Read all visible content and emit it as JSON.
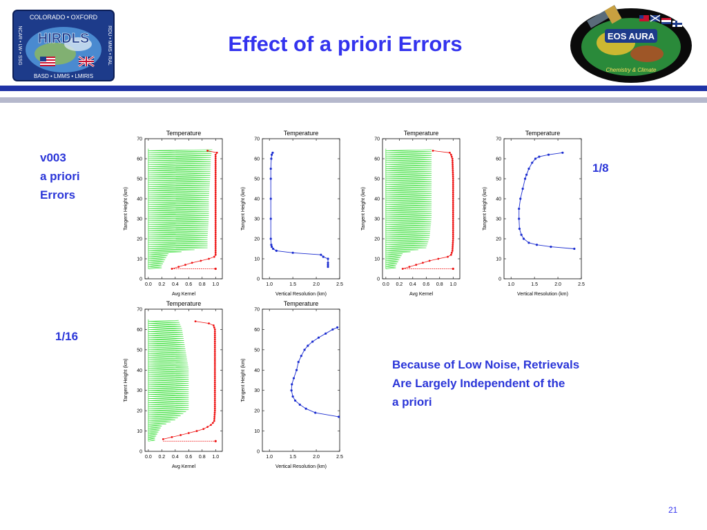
{
  "slide": {
    "title": "Effect of a priori Errors",
    "left_labels": [
      "v003",
      "a priori",
      "Errors"
    ],
    "label_1_8": "1/8",
    "label_1_16": "1/16",
    "note_lines": [
      "Because of Low Noise, Retrievals",
      "Are Largely Independent of the",
      "a priori"
    ],
    "page_number": "21"
  },
  "logo_left": {
    "top_text": "COLORADO • OXFORD",
    "center_text": "HIRDLS",
    "bottom_text": "BASD • LMMS • LMIRIS",
    "left_text": "NCAR • LW • SSG",
    "right_text": "RDU • MMS • RAL"
  },
  "logo_right": {
    "center_text": "EOS AURA",
    "bottom_text": "Chemistry & Climate"
  },
  "colors": {
    "title": "#3333ee",
    "kernel_lines": "#33dd33",
    "kernel_diagonal": "#ee1111",
    "resolution_line": "#1a2cd0",
    "accent_bar": "#1f33a6"
  },
  "chart_data": [
    {
      "type": "line",
      "kind": "kernel",
      "title": "Temperature",
      "xlabel": "Avg Kernel",
      "ylabel": "Tangent Height (km)",
      "xlim": [
        -0.05,
        1.1
      ],
      "ylim": [
        0,
        70
      ],
      "xticks": [
        "0.0",
        "0.2",
        "0.4",
        "0.6",
        "0.8",
        "1.0"
      ],
      "yticks": [
        "0",
        "10",
        "20",
        "30",
        "40",
        "50",
        "60",
        "70"
      ],
      "max_kernel_x": [
        [
          5,
          0.35
        ],
        [
          6,
          0.45
        ],
        [
          7,
          0.55
        ],
        [
          8,
          0.65
        ],
        [
          9,
          0.78
        ],
        [
          10,
          0.9
        ],
        [
          11,
          0.98
        ],
        [
          12,
          1.0
        ],
        [
          14,
          1.0
        ],
        [
          20,
          1.0
        ],
        [
          30,
          1.0
        ],
        [
          40,
          1.0
        ],
        [
          50,
          1.0
        ],
        [
          60,
          1.0
        ],
        [
          62,
          1.0
        ],
        [
          63,
          1.02
        ],
        [
          64,
          0.88
        ]
      ],
      "zigzag_max": [
        [
          6,
          0.2
        ],
        [
          12,
          0.3
        ],
        [
          15,
          0.88
        ],
        [
          20,
          0.88
        ],
        [
          30,
          0.9
        ],
        [
          40,
          0.9
        ],
        [
          50,
          0.92
        ],
        [
          60,
          0.93
        ],
        [
          64,
          0.95
        ]
      ],
      "diagonal": [
        [
          5,
          0.35
        ],
        [
          5,
          1.0
        ]
      ]
    },
    {
      "type": "line",
      "kind": "resolution",
      "title": "Temperature",
      "xlabel": "Vertical Resolution (km)",
      "ylabel": "Tangent Height (km)",
      "xlim": [
        0.85,
        2.5
      ],
      "ylim": [
        0,
        70
      ],
      "xticks": [
        "1.0",
        "1.5",
        "2.0",
        "2.5"
      ],
      "yticks": [
        "0",
        "10",
        "20",
        "30",
        "40",
        "50",
        "60",
        "70"
      ],
      "series": [
        [
          63,
          1.07
        ],
        [
          62,
          1.05
        ],
        [
          60,
          1.04
        ],
        [
          55,
          1.03
        ],
        [
          50,
          1.03
        ],
        [
          40,
          1.03
        ],
        [
          30,
          1.03
        ],
        [
          20,
          1.03
        ],
        [
          17,
          1.04
        ],
        [
          16,
          1.05
        ],
        [
          15,
          1.08
        ],
        [
          14,
          1.15
        ],
        [
          13,
          1.5
        ],
        [
          12,
          2.1
        ],
        [
          11,
          2.15
        ],
        [
          10,
          2.25
        ],
        [
          8,
          2.25
        ],
        [
          7,
          2.25
        ],
        [
          6,
          2.25
        ]
      ]
    },
    {
      "type": "line",
      "kind": "kernel",
      "title": "Temperature",
      "xlabel": "Avg Kernel",
      "ylabel": "Tangent Height (km)",
      "xlim": [
        -0.05,
        1.1
      ],
      "ylim": [
        0,
        70
      ],
      "xticks": [
        "0.0",
        "0.2",
        "0.4",
        "0.6",
        "0.8",
        "1.0"
      ],
      "yticks": [
        "0",
        "10",
        "20",
        "30",
        "40",
        "50",
        "60",
        "70"
      ],
      "max_kernel_x": [
        [
          5,
          0.25
        ],
        [
          6,
          0.35
        ],
        [
          7,
          0.45
        ],
        [
          8,
          0.55
        ],
        [
          9,
          0.65
        ],
        [
          10,
          0.78
        ],
        [
          11,
          0.92
        ],
        [
          12,
          0.97
        ],
        [
          14,
          0.99
        ],
        [
          20,
          1.0
        ],
        [
          30,
          1.0
        ],
        [
          40,
          1.0
        ],
        [
          50,
          1.0
        ],
        [
          60,
          0.99
        ],
        [
          62,
          0.97
        ],
        [
          63,
          0.95
        ],
        [
          64,
          0.7
        ]
      ],
      "zigzag_max": [
        [
          6,
          0.15
        ],
        [
          12,
          0.25
        ],
        [
          15,
          0.6
        ],
        [
          20,
          0.65
        ],
        [
          30,
          0.68
        ],
        [
          40,
          0.68
        ],
        [
          50,
          0.68
        ],
        [
          60,
          0.68
        ],
        [
          64,
          0.68
        ]
      ],
      "diagonal": [
        [
          5,
          0.25
        ],
        [
          5,
          1.0
        ]
      ]
    },
    {
      "type": "line",
      "kind": "resolution",
      "title": "Temperature",
      "xlabel": "Vertical Resolution (km)",
      "ylabel": "Tangent Height (km)",
      "xlim": [
        0.85,
        2.5
      ],
      "ylim": [
        0,
        70
      ],
      "xticks": [
        "1.0",
        "1.5",
        "2.0",
        "2.5"
      ],
      "yticks": [
        "0",
        "10",
        "20",
        "30",
        "40",
        "50",
        "60",
        "70"
      ],
      "series": [
        [
          63,
          2.1
        ],
        [
          62,
          1.8
        ],
        [
          61,
          1.6
        ],
        [
          60,
          1.52
        ],
        [
          58,
          1.45
        ],
        [
          55,
          1.38
        ],
        [
          52,
          1.33
        ],
        [
          50,
          1.3
        ],
        [
          45,
          1.25
        ],
        [
          40,
          1.2
        ],
        [
          35,
          1.17
        ],
        [
          30,
          1.17
        ],
        [
          25,
          1.18
        ],
        [
          22,
          1.22
        ],
        [
          20,
          1.27
        ],
        [
          18,
          1.38
        ],
        [
          17,
          1.55
        ],
        [
          16,
          1.85
        ],
        [
          15,
          2.35
        ]
      ]
    },
    {
      "type": "line",
      "kind": "kernel",
      "title": "Temperature",
      "xlabel": "Avg Kernel",
      "ylabel": "Tangent Height (km)",
      "xlim": [
        -0.05,
        1.1
      ],
      "ylim": [
        0,
        70
      ],
      "xticks": [
        "0.0",
        "0.2",
        "0.4",
        "0.6",
        "0.8",
        "1.0"
      ],
      "yticks": [
        "0",
        "10",
        "20",
        "30",
        "40",
        "50",
        "60",
        "70"
      ],
      "max_kernel_x": [
        [
          6,
          0.22
        ],
        [
          7,
          0.35
        ],
        [
          8,
          0.48
        ],
        [
          9,
          0.6
        ],
        [
          10,
          0.72
        ],
        [
          11,
          0.82
        ],
        [
          12,
          0.88
        ],
        [
          13,
          0.93
        ],
        [
          14,
          0.96
        ],
        [
          15,
          0.98
        ],
        [
          20,
          0.99
        ],
        [
          30,
          0.99
        ],
        [
          40,
          0.99
        ],
        [
          50,
          0.99
        ],
        [
          60,
          0.99
        ],
        [
          62,
          0.97
        ],
        [
          63,
          0.9
        ],
        [
          64,
          0.7
        ]
      ],
      "zigzag_max": [
        [
          6,
          0.1
        ],
        [
          12,
          0.2
        ],
        [
          15,
          0.4
        ],
        [
          20,
          0.6
        ],
        [
          30,
          0.6
        ],
        [
          40,
          0.6
        ],
        [
          50,
          0.55
        ],
        [
          60,
          0.5
        ],
        [
          64,
          0.45
        ]
      ],
      "diagonal": [
        [
          5,
          0.22
        ],
        [
          5,
          1.0
        ]
      ]
    },
    {
      "type": "line",
      "kind": "resolution",
      "title": "Temperature",
      "xlabel": "Vertical Resolution (km)",
      "ylabel": "Tangent Height (km)",
      "xlim": [
        0.85,
        2.5
      ],
      "ylim": [
        0,
        70
      ],
      "xticks": [
        "1.0",
        "1.5",
        "2.0",
        "2.5"
      ],
      "yticks": [
        "0",
        "10",
        "20",
        "30",
        "40",
        "50",
        "60",
        "70"
      ],
      "series": [
        [
          61,
          2.45
        ],
        [
          60,
          2.35
        ],
        [
          58,
          2.2
        ],
        [
          56,
          2.05
        ],
        [
          54,
          1.92
        ],
        [
          52,
          1.82
        ],
        [
          50,
          1.75
        ],
        [
          47,
          1.68
        ],
        [
          44,
          1.62
        ],
        [
          40,
          1.58
        ],
        [
          36,
          1.52
        ],
        [
          33,
          1.48
        ],
        [
          30,
          1.47
        ],
        [
          27,
          1.5
        ],
        [
          25,
          1.55
        ],
        [
          23,
          1.65
        ],
        [
          21,
          1.78
        ],
        [
          19,
          1.98
        ],
        [
          17,
          2.48
        ]
      ]
    }
  ]
}
